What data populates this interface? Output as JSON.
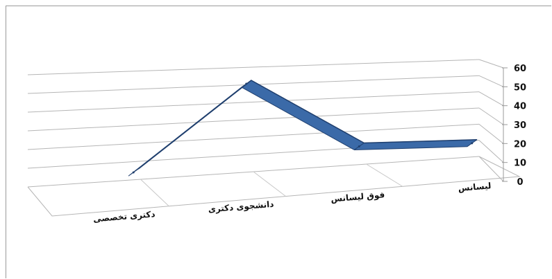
{
  "chart_data": {
    "type": "line",
    "style": "3d",
    "categories": [
      "دکتری تخصصی",
      "دانشجوی دکتری",
      "فوق لیسانس",
      "لیسانس"
    ],
    "values": [
      10,
      56,
      17,
      15
    ],
    "ylim": [
      0,
      60
    ],
    "y_ticks": [
      "0",
      "10",
      "20",
      "30",
      "40",
      "50",
      "60"
    ],
    "grid": true,
    "legend": "none",
    "series_color": "#3b6aa8",
    "series_edge_color": "#1f3f6e"
  }
}
